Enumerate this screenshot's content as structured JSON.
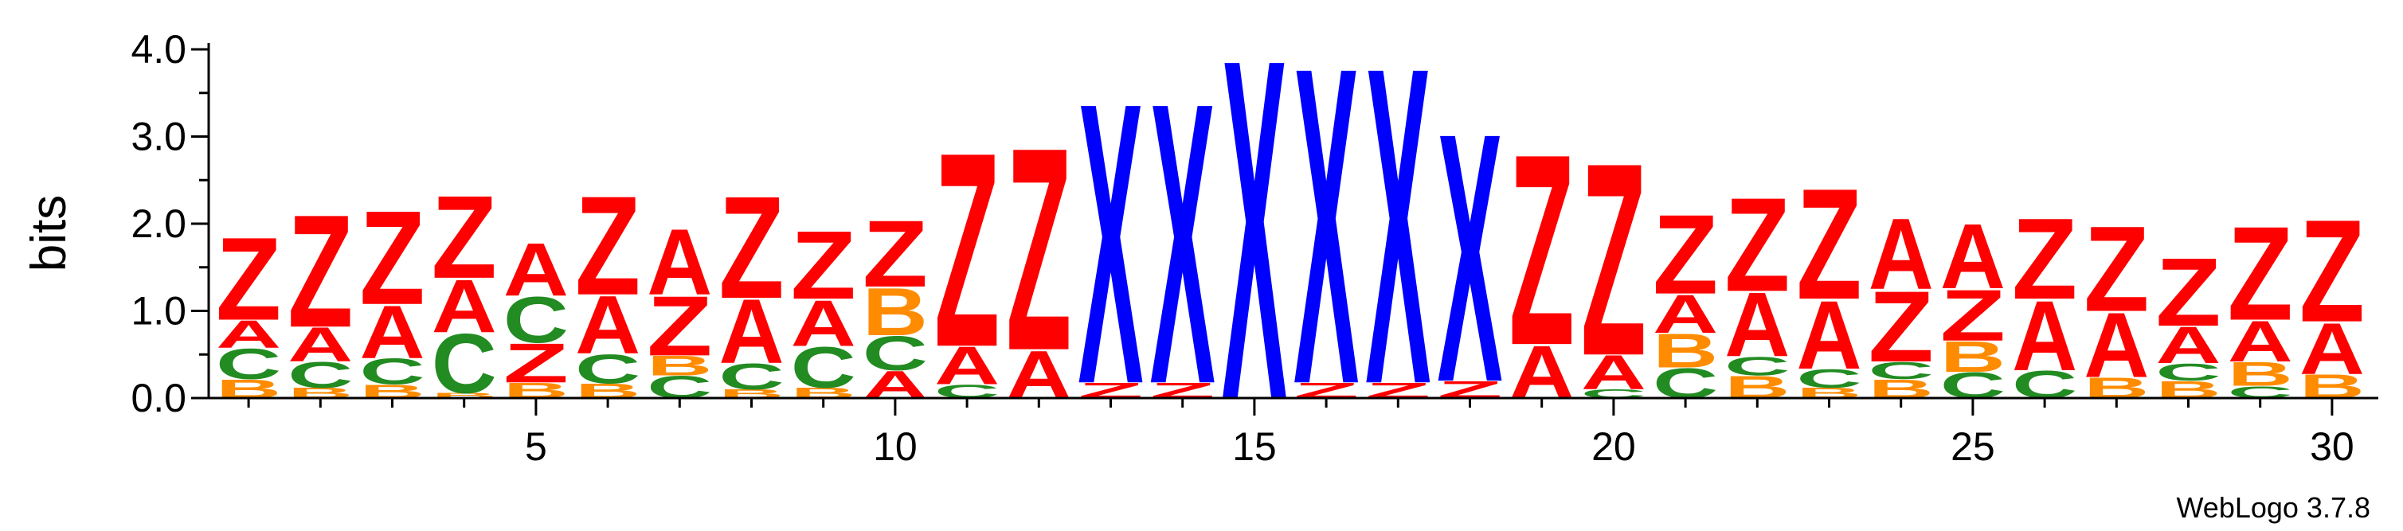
{
  "chart_data": {
    "type": "sequence-logo",
    "ylabel": "bits",
    "ylim": [
      0,
      4.0
    ],
    "y_ticks": [
      "0.0",
      "1.0",
      "2.0",
      "3.0",
      "4.0"
    ],
    "x_ticks": [
      "5",
      "10",
      "15",
      "20",
      "25",
      "30"
    ],
    "x_tick_positions": [
      5,
      10,
      15,
      20,
      25,
      30
    ],
    "positions": [
      1,
      30
    ],
    "credit": "WebLogo 3.7.8",
    "colors": {
      "Z": "#ff0000",
      "A": "#ff0000",
      "X": "#0000ff",
      "C": "#228b22",
      "B": "#ff8c00"
    },
    "stacks": [
      [
        [
          "B",
          0.22
        ],
        [
          "C",
          0.36
        ],
        [
          "A",
          0.32
        ],
        [
          "Z",
          0.97
        ]
      ],
      [
        [
          "B",
          0.12
        ],
        [
          "C",
          0.3
        ],
        [
          "A",
          0.4
        ],
        [
          "Z",
          1.32
        ]
      ],
      [
        [
          "B",
          0.16
        ],
        [
          "C",
          0.3
        ],
        [
          "A",
          0.62
        ],
        [
          "Z",
          1.1
        ]
      ],
      [
        [
          "B",
          0.06
        ],
        [
          "C",
          0.7
        ],
        [
          "A",
          0.62
        ],
        [
          "Z",
          0.97
        ]
      ],
      [
        [
          "B",
          0.18
        ],
        [
          "Z",
          0.46
        ],
        [
          "C",
          0.54
        ],
        [
          "A",
          0.62
        ]
      ],
      [
        [
          "B",
          0.17
        ],
        [
          "C",
          0.34
        ],
        [
          "A",
          0.68
        ],
        [
          "Z",
          1.16
        ]
      ],
      [
        [
          "C",
          0.26
        ],
        [
          "B",
          0.23
        ],
        [
          "Z",
          0.7
        ],
        [
          "A",
          0.77
        ]
      ],
      [
        [
          "B",
          0.1
        ],
        [
          "C",
          0.3
        ],
        [
          "A",
          0.75
        ],
        [
          "Z",
          1.2
        ]
      ],
      [
        [
          "B",
          0.12
        ],
        [
          "C",
          0.48
        ],
        [
          "A",
          0.54
        ],
        [
          "Z",
          0.8
        ]
      ],
      [
        [
          "A",
          0.32
        ],
        [
          "C",
          0.4
        ],
        [
          "B",
          0.56
        ],
        [
          "Z",
          0.78
        ]
      ],
      [
        [
          "C",
          0.16
        ],
        [
          "A",
          0.44
        ],
        [
          "Z",
          2.28
        ]
      ],
      [
        [
          "A",
          0.56
        ],
        [
          "Z",
          2.38
        ]
      ],
      [
        [
          "Z",
          0.18
        ],
        [
          "X",
          3.3
        ]
      ],
      [
        [
          "Z",
          0.18
        ],
        [
          "X",
          3.3
        ]
      ],
      [
        [
          "X",
          4.0
        ]
      ],
      [
        [
          "Z",
          0.18
        ],
        [
          "X",
          3.72
        ]
      ],
      [
        [
          "Z",
          0.18
        ],
        [
          "X",
          3.72
        ]
      ],
      [
        [
          "Z",
          0.2
        ],
        [
          "X",
          2.92
        ]
      ],
      [
        [
          "A",
          0.62
        ],
        [
          "Z",
          2.24
        ]
      ],
      [
        [
          "C",
          0.1
        ],
        [
          "A",
          0.4
        ],
        [
          "Z",
          2.26
        ]
      ],
      [
        [
          "C",
          0.35
        ],
        [
          "B",
          0.4
        ],
        [
          "A",
          0.45
        ],
        [
          "Z",
          0.93
        ]
      ],
      [
        [
          "B",
          0.26
        ],
        [
          "C",
          0.22
        ],
        [
          "A",
          0.75
        ],
        [
          "Z",
          1.1
        ]
      ],
      [
        [
          "B",
          0.12
        ],
        [
          "C",
          0.22
        ],
        [
          "A",
          0.8
        ],
        [
          "Z",
          1.3
        ]
      ],
      [
        [
          "B",
          0.22
        ],
        [
          "C",
          0.2
        ],
        [
          "Z",
          0.83
        ],
        [
          "A",
          0.83
        ]
      ],
      [
        [
          "C",
          0.3
        ],
        [
          "B",
          0.36
        ],
        [
          "Z",
          0.6
        ],
        [
          "A",
          0.76
        ]
      ],
      [
        [
          "C",
          0.32
        ],
        [
          "A",
          0.82
        ],
        [
          "Z",
          0.95
        ]
      ],
      [
        [
          "B",
          0.24
        ],
        [
          "A",
          0.76
        ],
        [
          "Z",
          1.0
        ]
      ],
      [
        [
          "B",
          0.2
        ],
        [
          "C",
          0.2
        ],
        [
          "A",
          0.43
        ],
        [
          "Z",
          0.8
        ]
      ],
      [
        [
          "C",
          0.14
        ],
        [
          "B",
          0.28
        ],
        [
          "A",
          0.48
        ],
        [
          "Z",
          1.1
        ]
      ],
      [
        [
          "B",
          0.28
        ],
        [
          "A",
          0.6
        ],
        [
          "Z",
          1.2
        ]
      ]
    ]
  }
}
